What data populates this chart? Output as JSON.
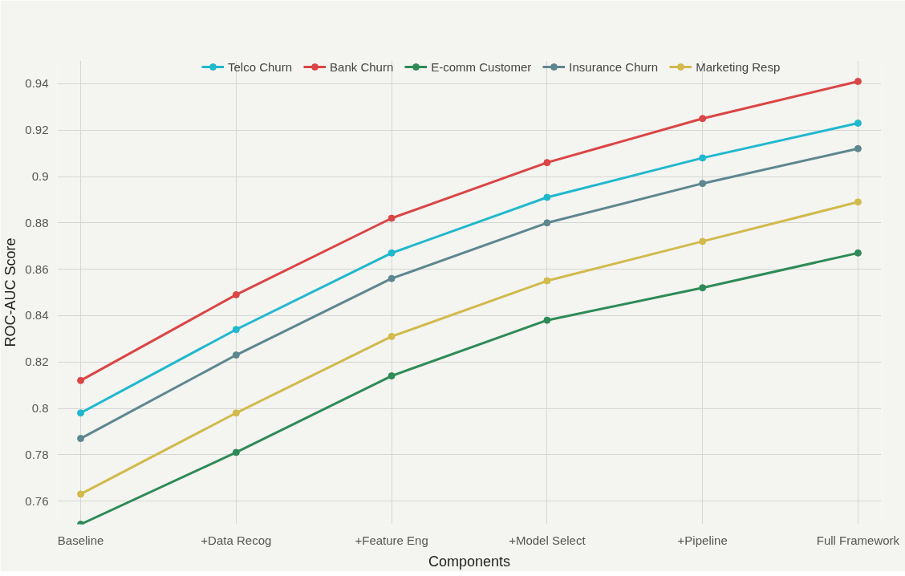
{
  "chart_data": {
    "type": "line",
    "xlabel": "Components",
    "ylabel": "ROC-AUC Score",
    "categories": [
      "Baseline",
      "+Data Recog",
      "+Feature Eng",
      "+Model Select",
      "+Pipeline",
      "Full Framework"
    ],
    "series": [
      {
        "name": "Telco Churn",
        "color": "#1fb8cd",
        "values": [
          0.798,
          0.834,
          0.867,
          0.891,
          0.908,
          0.923
        ]
      },
      {
        "name": "Bank Churn",
        "color": "#db4545",
        "values": [
          0.812,
          0.849,
          0.882,
          0.906,
          0.925,
          0.941
        ]
      },
      {
        "name": "E-comm Customer",
        "color": "#2e8b57",
        "values": [
          0.75,
          0.781,
          0.814,
          0.838,
          0.852,
          0.867
        ]
      },
      {
        "name": "Insurance Churn",
        "color": "#5d878f",
        "values": [
          0.787,
          0.823,
          0.856,
          0.88,
          0.897,
          0.912
        ]
      },
      {
        "name": "Marketing Resp",
        "color": "#d2ba4c",
        "values": [
          0.763,
          0.798,
          0.831,
          0.855,
          0.872,
          0.889
        ]
      }
    ],
    "ylim": [
      0.75,
      0.95
    ],
    "yticks": [
      0.76,
      0.78,
      0.8,
      0.82,
      0.84,
      0.86,
      0.88,
      0.9,
      0.92,
      0.94
    ],
    "grid": true,
    "legend": "top",
    "marker": "circle",
    "line_style": "solid"
  }
}
